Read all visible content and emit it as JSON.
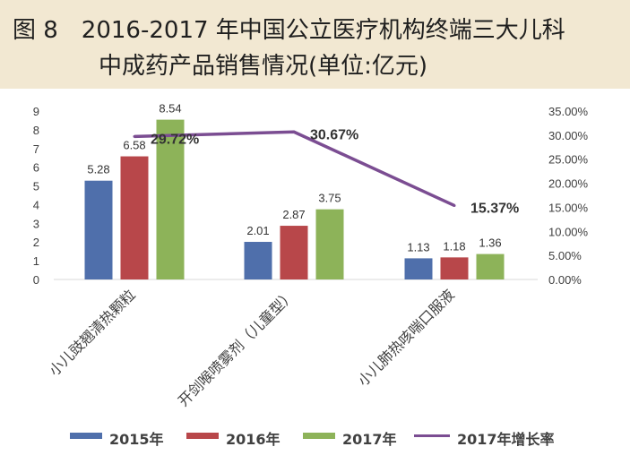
{
  "header": {
    "line1": "图 8　2016-2017 年中国公立医疗机构终端三大儿科",
    "line2": "中成药产品销售情况(单位:亿元)"
  },
  "chart_data": {
    "type": "bar",
    "categories": [
      "小儿豉翘清热颗粒",
      "开剑喉喷雾剂（儿童型）",
      "小儿肺热咳喘口服液"
    ],
    "series": [
      {
        "name": "2015年",
        "color": "#4f6fab",
        "values": [
          5.28,
          2.01,
          1.13
        ],
        "labels": [
          "5.28",
          "2.01",
          "1.13"
        ]
      },
      {
        "name": "2016年",
        "color": "#b8474a",
        "values": [
          6.58,
          2.87,
          1.18
        ],
        "labels": [
          "6.58",
          "2.87",
          "1.18"
        ]
      },
      {
        "name": "2017年",
        "color": "#8db359",
        "values": [
          8.54,
          3.75,
          1.36
        ],
        "labels": [
          "8.54",
          "3.75",
          "1.36"
        ]
      }
    ],
    "line_series": {
      "name": "2017年增长率",
      "color": "#7b4d92",
      "axis": "right",
      "values": [
        29.72,
        30.67,
        15.37
      ],
      "labels": [
        "29.72%",
        "30.67%",
        "15.37%"
      ]
    },
    "y_left": {
      "min": 0,
      "max": 9,
      "ticks": [
        "0",
        "1",
        "2",
        "3",
        "4",
        "5",
        "6",
        "7",
        "8",
        "9"
      ]
    },
    "y_right": {
      "min": 0,
      "max": 35,
      "ticks": [
        "0.00%",
        "5.00%",
        "10.00%",
        "15.00%",
        "20.00%",
        "25.00%",
        "30.00%",
        "35.00%"
      ]
    },
    "grid": false,
    "legend_position": "bottom"
  }
}
